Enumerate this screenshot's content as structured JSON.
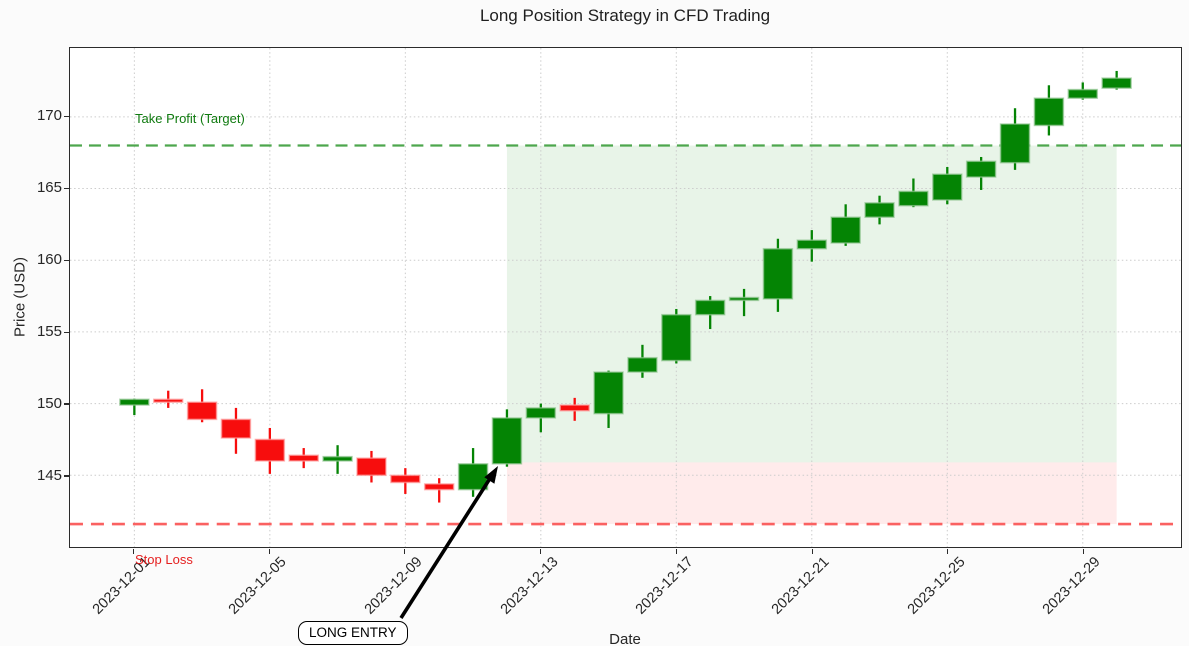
{
  "title": "Long Position Strategy in CFD Trading",
  "chart_data": {
    "type": "candlestick",
    "title": "Long Position Strategy in CFD Trading",
    "xlabel": "Date",
    "ylabel": "Price (USD)",
    "ylim": [
      140.0,
      174.8
    ],
    "xlim_index": [
      -1.9,
      30.9
    ],
    "grid": "dotted",
    "y_ticks": [
      145,
      150,
      155,
      160,
      165,
      170
    ],
    "x_ticks": [
      {
        "index": 0,
        "label": "2023-12-01"
      },
      {
        "index": 4,
        "label": "2023-12-05"
      },
      {
        "index": 8,
        "label": "2023-12-09"
      },
      {
        "index": 12,
        "label": "2023-12-13"
      },
      {
        "index": 16,
        "label": "2023-12-17"
      },
      {
        "index": 20,
        "label": "2023-12-21"
      },
      {
        "index": 24,
        "label": "2023-12-25"
      },
      {
        "index": 28,
        "label": "2023-12-29"
      }
    ],
    "up_color": "#048404",
    "down_color": "#f70d0d",
    "up_edge_color": "rgba(150,200,150,0.65)",
    "down_edge_color": "rgba(255,160,160,0.65)",
    "grid_color": "#cccccc",
    "candles": [
      {
        "date": "2023-12-01",
        "o": 149.9,
        "h": 150.35,
        "l": 149.2,
        "c": 150.3
      },
      {
        "date": "2023-12-02",
        "o": 150.3,
        "h": 150.9,
        "l": 149.7,
        "c": 150.1
      },
      {
        "date": "2023-12-03",
        "o": 150.1,
        "h": 151.0,
        "l": 148.7,
        "c": 148.9
      },
      {
        "date": "2023-12-04",
        "o": 148.9,
        "h": 149.7,
        "l": 146.5,
        "c": 147.6
      },
      {
        "date": "2023-12-05",
        "o": 147.5,
        "h": 148.3,
        "l": 145.1,
        "c": 146.0
      },
      {
        "date": "2023-12-06",
        "o": 146.4,
        "h": 146.9,
        "l": 145.5,
        "c": 146.0
      },
      {
        "date": "2023-12-07",
        "o": 146.0,
        "h": 147.1,
        "l": 145.1,
        "c": 146.3
      },
      {
        "date": "2023-12-08",
        "o": 146.2,
        "h": 146.7,
        "l": 144.5,
        "c": 145.0
      },
      {
        "date": "2023-12-09",
        "o": 145.0,
        "h": 145.5,
        "l": 143.7,
        "c": 144.5
      },
      {
        "date": "2023-12-10",
        "o": 144.4,
        "h": 144.8,
        "l": 143.1,
        "c": 144.0
      },
      {
        "date": "2023-12-11",
        "o": 144.0,
        "h": 146.9,
        "l": 143.5,
        "c": 145.8
      },
      {
        "date": "2023-12-12",
        "o": 145.8,
        "h": 149.6,
        "l": 145.6,
        "c": 149.0
      },
      {
        "date": "2023-12-13",
        "o": 149.0,
        "h": 150.0,
        "l": 148.0,
        "c": 149.7
      },
      {
        "date": "2023-12-14",
        "o": 149.9,
        "h": 150.4,
        "l": 148.8,
        "c": 149.5
      },
      {
        "date": "2023-12-15",
        "o": 149.3,
        "h": 152.3,
        "l": 148.3,
        "c": 152.2
      },
      {
        "date": "2023-12-16",
        "o": 152.2,
        "h": 154.1,
        "l": 151.8,
        "c": 153.2
      },
      {
        "date": "2023-12-17",
        "o": 153.0,
        "h": 156.6,
        "l": 152.8,
        "c": 156.2
      },
      {
        "date": "2023-12-18",
        "o": 156.2,
        "h": 157.5,
        "l": 155.2,
        "c": 157.2
      },
      {
        "date": "2023-12-19",
        "o": 157.2,
        "h": 158.0,
        "l": 156.1,
        "c": 157.4
      },
      {
        "date": "2023-12-20",
        "o": 157.3,
        "h": 161.5,
        "l": 156.4,
        "c": 160.8
      },
      {
        "date": "2023-12-21",
        "o": 160.8,
        "h": 162.1,
        "l": 159.9,
        "c": 161.4
      },
      {
        "date": "2023-12-22",
        "o": 161.2,
        "h": 163.9,
        "l": 161.0,
        "c": 163.0
      },
      {
        "date": "2023-12-23",
        "o": 163.0,
        "h": 164.5,
        "l": 162.5,
        "c": 164.0
      },
      {
        "date": "2023-12-24",
        "o": 163.8,
        "h": 165.7,
        "l": 163.7,
        "c": 164.8
      },
      {
        "date": "2023-12-25",
        "o": 164.2,
        "h": 166.5,
        "l": 163.9,
        "c": 166.0
      },
      {
        "date": "2023-12-26",
        "o": 165.8,
        "h": 167.2,
        "l": 164.9,
        "c": 166.9
      },
      {
        "date": "2023-12-27",
        "o": 166.8,
        "h": 170.6,
        "l": 166.3,
        "c": 169.5
      },
      {
        "date": "2023-12-28",
        "o": 169.4,
        "h": 172.2,
        "l": 168.7,
        "c": 171.3
      },
      {
        "date": "2023-12-29",
        "o": 171.3,
        "h": 172.4,
        "l": 171.2,
        "c": 171.9
      },
      {
        "date": "2023-12-30",
        "o": 172.0,
        "h": 173.2,
        "l": 171.9,
        "c": 172.7
      }
    ],
    "lines": [
      {
        "name": "take-profit",
        "price": 168.0,
        "color": "#4da64d",
        "label": "Take Profit (Target)",
        "label_color": "#0f7a0f",
        "dash": "12 7",
        "width": 2.2
      },
      {
        "name": "stop-loss",
        "price": 141.6,
        "color": "#fa6161",
        "label": "Stop Loss",
        "label_color": "#e51f1f",
        "dash": "13 8",
        "width": 2.6
      }
    ],
    "regions": [
      {
        "name": "profit-zone",
        "from_index": 11,
        "to_index": 29,
        "price_from": 145.9,
        "price_to": 168.0,
        "fill": "rgba(0,128,0,0.09)"
      },
      {
        "name": "loss-zone",
        "from_index": 11,
        "to_index": 29,
        "price_from": 141.6,
        "price_to": 145.9,
        "fill": "rgba(255,0,0,0.08)"
      }
    ],
    "annotation": {
      "label": "LONG ENTRY",
      "entry_date": "2023-12-12",
      "entry_index": 11
    }
  }
}
